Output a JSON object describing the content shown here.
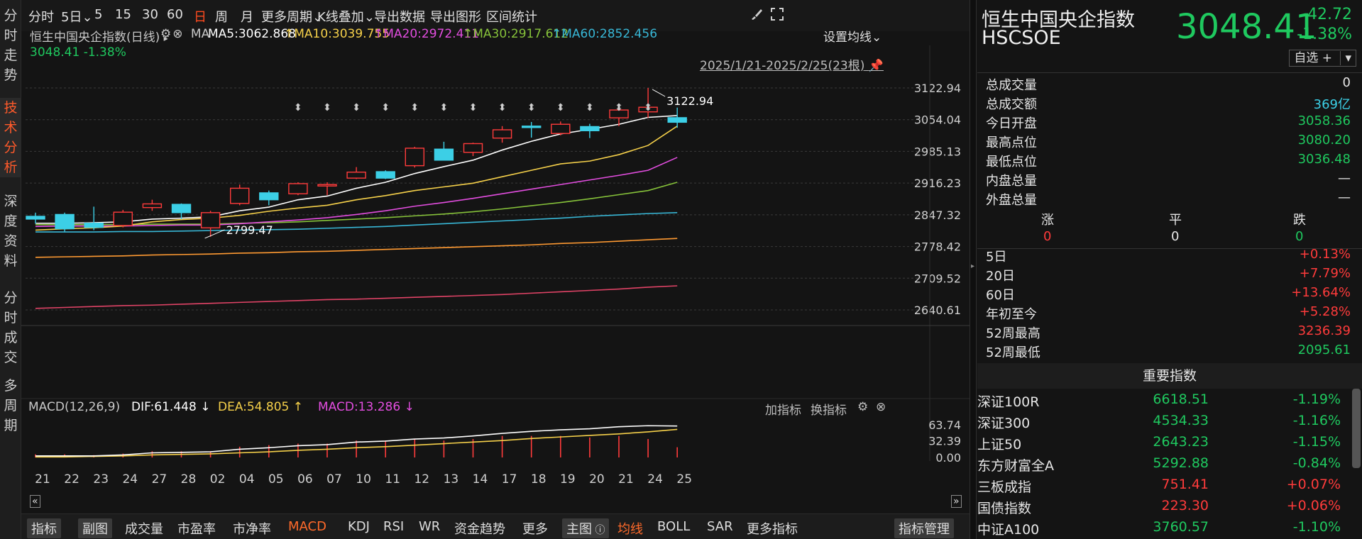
{
  "leftnav": [
    {
      "label": "分时走势",
      "active": false
    },
    {
      "label": "技术分析",
      "active": true
    },
    {
      "label": "深度资料",
      "active": false
    },
    {
      "label": "分时成交",
      "active": false
    },
    {
      "label": "多周期",
      "active": false
    }
  ],
  "toolbar": {
    "items": [
      "分时",
      "5日",
      "5",
      "15",
      "30",
      "60",
      "日",
      "周",
      "月",
      "更多周期",
      "K线叠加",
      "导出数据",
      "导出图形",
      "区间统计"
    ],
    "active": "日",
    "dropdown_chevron": "⌄",
    "brush_icon": "brush-icon",
    "expand_icon": "expand-icon"
  },
  "main_info": {
    "title": "恒生中国央企指数(日线)",
    "arrow": "▸",
    "ma_label": "MA",
    "ma5": "MA5:3062.868",
    "ma10": "MA10:3039.755",
    "ma20": "MA20:2972.411",
    "ma30": "MA30:2917.612",
    "ma60": "MA60:2852.456",
    "setting": "设置均线",
    "price_line": "3048.41  -1.38%",
    "range": "2025/1/21-2025/2/25(23根)",
    "annot_high": "3122.94",
    "annot_low": "2799.47"
  },
  "colors": {
    "up": "#ff3b3b",
    "down": "#3ccfe6",
    "ma5": "#ffffff",
    "ma10": "#f5d04a",
    "ma20": "#e24ddf",
    "ma30": "#86c23a",
    "ma60": "#38b7d6",
    "ma_orange": "#ff9a32",
    "ma_red": "#e04366",
    "green": "#1fc95f"
  },
  "chart_data": {
    "type": "candlestick",
    "x_labels": [
      "21",
      "22",
      "23",
      "24",
      "27",
      "28",
      "02",
      "04",
      "05",
      "06",
      "07",
      "10",
      "11",
      "12",
      "13",
      "14",
      "17",
      "18",
      "19",
      "20",
      "21",
      "24",
      "25"
    ],
    "y_ticks": [
      3122.94,
      3054.04,
      2985.13,
      2916.23,
      2847.32,
      2778.42,
      2709.52,
      2640.61
    ],
    "ylim": [
      2640.61,
      3122.94
    ],
    "candles": [
      {
        "o": 2844,
        "h": 2852,
        "l": 2828,
        "c": 2838
      },
      {
        "o": 2848,
        "h": 2852,
        "l": 2811,
        "c": 2817
      },
      {
        "o": 2829,
        "h": 2865,
        "l": 2814,
        "c": 2820
      },
      {
        "o": 2824,
        "h": 2858,
        "l": 2820,
        "c": 2853
      },
      {
        "o": 2863,
        "h": 2880,
        "l": 2856,
        "c": 2871
      },
      {
        "o": 2870,
        "h": 2872,
        "l": 2838,
        "c": 2852
      },
      {
        "o": 2819,
        "h": 2856,
        "l": 2799.47,
        "c": 2852
      },
      {
        "o": 2872,
        "h": 2913,
        "l": 2868,
        "c": 2905
      },
      {
        "o": 2895,
        "h": 2900,
        "l": 2868,
        "c": 2880
      },
      {
        "o": 2893,
        "h": 2918,
        "l": 2890,
        "c": 2915
      },
      {
        "o": 2912,
        "h": 2918,
        "l": 2890,
        "c": 2913
      },
      {
        "o": 2927,
        "h": 2951,
        "l": 2925,
        "c": 2940
      },
      {
        "o": 2941,
        "h": 2944,
        "l": 2925,
        "c": 2927
      },
      {
        "o": 2954,
        "h": 2995,
        "l": 2950,
        "c": 2992
      },
      {
        "o": 2990,
        "h": 3006,
        "l": 2965,
        "c": 2966
      },
      {
        "o": 2983,
        "h": 3004,
        "l": 2975,
        "c": 3002
      },
      {
        "o": 3014,
        "h": 3040,
        "l": 3004,
        "c": 3032
      },
      {
        "o": 3040,
        "h": 3049,
        "l": 3015,
        "c": 3039
      },
      {
        "o": 3024,
        "h": 3050,
        "l": 3020,
        "c": 3044
      },
      {
        "o": 3039,
        "h": 3045,
        "l": 3014,
        "c": 3030
      },
      {
        "o": 3058,
        "h": 3078,
        "l": 3040,
        "c": 3075
      },
      {
        "o": 3071,
        "h": 3122.94,
        "l": 3058,
        "c": 3081
      },
      {
        "o": 3058.36,
        "h": 3080.2,
        "l": 3036.48,
        "c": 3048.41
      }
    ],
    "ma5": [
      2829,
      2829,
      2830,
      2832,
      2838,
      2840,
      2843,
      2856,
      2864,
      2880,
      2888,
      2905,
      2918,
      2937,
      2952,
      2966,
      2988,
      3007,
      3023,
      3033,
      3044,
      3059,
      3063
    ],
    "ma10": [
      2814,
      2817,
      2819,
      2823,
      2832,
      2837,
      2840,
      2846,
      2855,
      2862,
      2868,
      2880,
      2889,
      2900,
      2908,
      2916,
      2930,
      2944,
      2958,
      2964,
      2978,
      2998,
      3040
    ],
    "ma20": [
      2822,
      2823,
      2823,
      2823,
      2824,
      2825,
      2825,
      2828,
      2832,
      2836,
      2841,
      2848,
      2856,
      2866,
      2874,
      2883,
      2893,
      2903,
      2913,
      2923,
      2933,
      2944,
      2972
    ],
    "ma30": [
      2826,
      2826,
      2826,
      2826,
      2827,
      2827,
      2827,
      2829,
      2830,
      2832,
      2835,
      2838,
      2841,
      2845,
      2849,
      2854,
      2860,
      2867,
      2874,
      2882,
      2891,
      2900,
      2918
    ],
    "ma60": [
      2810,
      2810,
      2810,
      2811,
      2811,
      2812,
      2813,
      2814,
      2815,
      2816,
      2818,
      2820,
      2822,
      2825,
      2828,
      2831,
      2834,
      2837,
      2840,
      2844,
      2847,
      2850,
      2852
    ],
    "ma_orange": [
      2755,
      2756,
      2757,
      2758,
      2760,
      2761,
      2762,
      2764,
      2765,
      2767,
      2768,
      2770,
      2772,
      2774,
      2776,
      2778,
      2780,
      2782,
      2785,
      2787,
      2790,
      2793,
      2796
    ],
    "ma_red": [
      2644,
      2646,
      2648,
      2650,
      2651,
      2653,
      2655,
      2657,
      2659,
      2661,
      2663,
      2664,
      2666,
      2668,
      2670,
      2672,
      2674,
      2677,
      2680,
      2683,
      2686,
      2690,
      2693
    ],
    "macd": {
      "label": "MACD(12,26,9)",
      "dif_label": "DIF:61.448",
      "dea_label": "DEA:54.805",
      "macd_label": "MACD:13.286",
      "ticks": [
        63.74,
        32.39,
        0.0
      ],
      "dif": [
        3,
        3,
        3,
        5,
        9,
        10,
        11,
        16,
        19,
        23,
        25,
        30,
        32,
        36,
        38,
        42,
        47,
        51,
        54,
        56,
        60,
        62,
        61.45
      ],
      "dea": [
        1,
        1,
        2,
        3,
        5,
        6,
        7,
        9,
        11,
        14,
        16,
        19,
        21,
        24,
        27,
        30,
        33,
        37,
        40,
        43,
        46,
        50,
        54.8
      ],
      "hist": [
        4,
        4,
        3,
        5,
        8,
        8,
        8,
        14,
        16,
        18,
        18,
        22,
        22,
        24,
        22,
        24,
        28,
        28,
        28,
        26,
        28,
        24,
        13.3
      ]
    }
  },
  "macd_panel": {
    "add_indicator": "加指标",
    "switch_indicator": "换指标"
  },
  "bottombar": {
    "items": [
      "指标",
      "副图",
      "成交量",
      "市盈率",
      "市净率",
      "MACD",
      "KDJ",
      "RSI",
      "WR",
      "资金趋势",
      "更多",
      "主图",
      "均线",
      "BOLL",
      "SAR",
      "更多指标"
    ],
    "manage": "指标管理"
  },
  "quote": {
    "name": "恒生中国央企指数",
    "code": "HSCSOE",
    "price": "3048.41",
    "change": "-42.72",
    "change_pct": "-1.38%",
    "select": "自选 +",
    "stats": [
      {
        "k": "总成交量",
        "v": "0",
        "cls": "w"
      },
      {
        "k": "总成交额",
        "v": "369亿",
        "cls": "c"
      },
      {
        "k": "今日开盘",
        "v": "3058.36",
        "cls": "g"
      },
      {
        "k": "最高点位",
        "v": "3080.20",
        "cls": "g"
      },
      {
        "k": "最低点位",
        "v": "3036.48",
        "cls": "g"
      },
      {
        "k": "内盘总量",
        "v": "—",
        "cls": "w"
      },
      {
        "k": "外盘总量",
        "v": "—",
        "cls": "w"
      }
    ],
    "breadth_labels": [
      "涨",
      "平",
      "跌"
    ],
    "breadth_values": [
      "0",
      "0",
      "0"
    ],
    "perf": [
      {
        "k": "5日",
        "v": "+0.13%",
        "cls": "r"
      },
      {
        "k": "20日",
        "v": "+7.79%",
        "cls": "r"
      },
      {
        "k": "60日",
        "v": "+13.64%",
        "cls": "r"
      },
      {
        "k": "年初至今",
        "v": "+5.28%",
        "cls": "r"
      },
      {
        "k": "52周最高",
        "v": "3236.39",
        "cls": "r"
      },
      {
        "k": "52周最低",
        "v": "2095.61",
        "cls": "g"
      }
    ]
  },
  "indices": {
    "title": "重要指数",
    "rows": [
      {
        "n": "深证100R",
        "p": "6618.51",
        "c": "-1.19%",
        "pc": "g",
        "cc": "g"
      },
      {
        "n": "深证300",
        "p": "4534.33",
        "c": "-1.16%",
        "pc": "g",
        "cc": "g"
      },
      {
        "n": "上证50",
        "p": "2643.23",
        "c": "-1.15%",
        "pc": "g",
        "cc": "g"
      },
      {
        "n": "东方财富全A",
        "p": "5292.88",
        "c": "-0.84%",
        "pc": "g",
        "cc": "g"
      },
      {
        "n": "三板成指",
        "p": "751.41",
        "c": "+0.07%",
        "pc": "r",
        "cc": "r"
      },
      {
        "n": "国债指数",
        "p": "223.30",
        "c": "+0.06%",
        "pc": "r",
        "cc": "r"
      },
      {
        "n": "中证A100",
        "p": "3760.57",
        "c": "-1.10%",
        "pc": "g",
        "cc": "g"
      }
    ]
  }
}
